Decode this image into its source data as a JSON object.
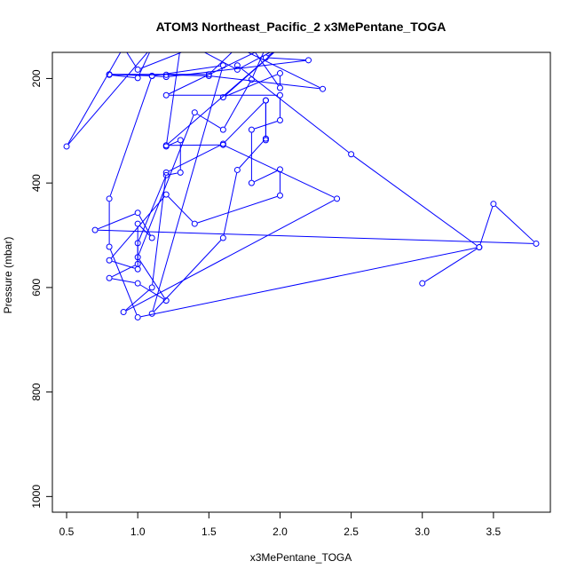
{
  "chart_data": {
    "type": "line",
    "title": "ATOM3 Northeast_Pacific_2 x3MePentane_TOGA",
    "xlabel": "x3MePentane_TOGA",
    "ylabel": "Pressure (mbar)",
    "xlim": [
      0.4,
      3.9
    ],
    "ylim": [
      1030,
      150
    ],
    "y_reversed": true,
    "x_ticks": [
      0.5,
      1.0,
      1.5,
      2.0,
      2.5,
      3.0,
      3.5
    ],
    "x_tick_labels": [
      "0.5",
      "1.0",
      "1.5",
      "2.0",
      "2.5",
      "3.0",
      "3.5"
    ],
    "y_ticks": [
      200,
      400,
      600,
      800,
      1000
    ],
    "y_tick_labels": [
      "200",
      "400",
      "600",
      "800",
      "1000"
    ],
    "grid": false,
    "series": [
      {
        "color": "#0000ff",
        "marker": "open-circle",
        "points": [
          [
            3.0,
            592
          ],
          [
            3.4,
            523
          ],
          [
            3.5,
            440
          ],
          [
            3.8,
            516
          ],
          [
            0.7,
            490
          ],
          [
            1.0,
            457
          ],
          [
            1.1,
            505
          ],
          [
            1.0,
            478
          ],
          [
            1.0,
            565
          ],
          [
            0.8,
            548
          ],
          [
            1.2,
            422
          ],
          [
            1.4,
            478
          ],
          [
            2.0,
            424
          ],
          [
            2.0,
            374
          ],
          [
            1.8,
            400
          ],
          [
            1.8,
            298
          ],
          [
            2.0,
            280
          ],
          [
            2.0,
            232
          ],
          [
            1.2,
            232
          ],
          [
            1.9,
            140
          ],
          [
            1.8,
            202
          ],
          [
            1.6,
            298
          ],
          [
            1.4,
            265
          ],
          [
            1.0,
            542
          ],
          [
            1.2,
            625
          ],
          [
            1.0,
            592
          ],
          [
            0.8,
            582
          ],
          [
            1.0,
            555
          ],
          [
            1.0,
            515
          ],
          [
            1.2,
            385
          ],
          [
            1.3,
            380
          ],
          [
            1.3,
            318
          ],
          [
            1.2,
            330
          ],
          [
            1.3,
            140
          ],
          [
            1.8,
            140
          ],
          [
            2.0,
            218
          ],
          [
            2.0,
            190
          ],
          [
            1.6,
            236
          ],
          [
            2.0,
            140
          ],
          [
            1.7,
            183
          ],
          [
            1.4,
            140
          ],
          [
            1.0,
            183
          ],
          [
            0.9,
            140
          ],
          [
            0.5,
            330
          ],
          [
            1.1,
            140
          ],
          [
            1.0,
            199
          ],
          [
            0.8,
            193
          ],
          [
            1.2,
            193
          ],
          [
            1.5,
            195
          ],
          [
            2.3,
            220
          ],
          [
            1.7,
            140
          ],
          [
            1.5,
            192
          ],
          [
            0.8,
            192
          ],
          [
            1.1,
            195
          ],
          [
            1.6,
            175
          ],
          [
            1.1,
            650
          ],
          [
            1.6,
            505
          ],
          [
            1.7,
            375
          ],
          [
            1.9,
            315
          ],
          [
            1.9,
            242
          ],
          [
            1.9,
            318
          ],
          [
            1.9,
            242
          ],
          [
            1.6,
            325
          ],
          [
            1.2,
            380
          ],
          [
            1.1,
            600
          ],
          [
            0.9,
            647
          ],
          [
            2.4,
            430
          ],
          [
            1.6,
            327
          ],
          [
            1.2,
            328
          ],
          [
            2.0,
            140
          ],
          [
            1.9,
            160
          ],
          [
            2.2,
            165
          ],
          [
            1.2,
            197
          ],
          [
            1.1,
            195
          ],
          [
            0.8,
            430
          ],
          [
            0.8,
            522
          ],
          [
            1.0,
            657
          ],
          [
            3.4,
            523
          ],
          [
            2.5,
            345
          ],
          [
            1.7,
            175
          ]
        ]
      }
    ]
  }
}
